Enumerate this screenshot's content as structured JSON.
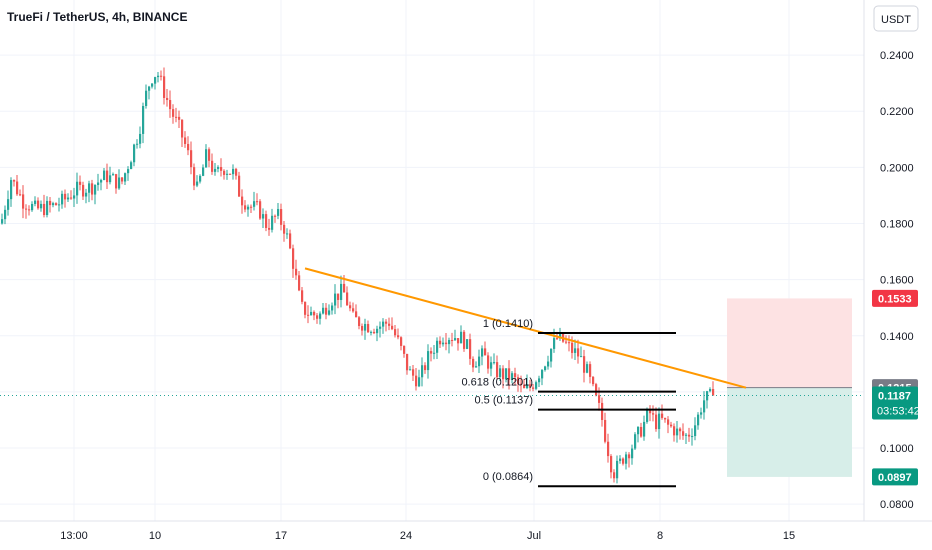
{
  "header": {
    "title": "TrueFi / TetherUS, 4h, BINANCE",
    "currency_button": "USDT"
  },
  "colors": {
    "up": "#26a69a",
    "down": "#ef5350",
    "trendline": "#ff9800",
    "fib_line": "#000000",
    "stop_zone": "#fde2e3",
    "target_zone": "#d7eee9",
    "stop_badge": "#f23645",
    "target_badge": "#089981",
    "last_badge": "#089981",
    "entry_badge": "#787b86"
  },
  "chart_data": {
    "type": "candlestick",
    "title": "TrueFi / TetherUS, 4h, BINANCE",
    "x_ticks": [
      "13:00",
      "10",
      "17",
      "24",
      "Jul",
      "8",
      "15"
    ],
    "y_ticks": [
      "0.2400",
      "0.2200",
      "0.2000",
      "0.1800",
      "0.1600",
      "0.1400",
      "0.1200",
      "0.1000",
      "0.0800"
    ],
    "ylim": [
      0.074,
      0.2525
    ],
    "price_path": [
      [
        0,
        0.18
      ],
      [
        10,
        0.196
      ],
      [
        22,
        0.188
      ],
      [
        35,
        0.185
      ],
      [
        50,
        0.186
      ],
      [
        62,
        0.188
      ],
      [
        75,
        0.192
      ],
      [
        90,
        0.193
      ],
      [
        105,
        0.197
      ],
      [
        120,
        0.194
      ],
      [
        130,
        0.204
      ],
      [
        138,
        0.213
      ],
      [
        145,
        0.226
      ],
      [
        150,
        0.232
      ],
      [
        156,
        0.234
      ],
      [
        162,
        0.228
      ],
      [
        170,
        0.22
      ],
      [
        178,
        0.214
      ],
      [
        186,
        0.206
      ],
      [
        196,
        0.192
      ],
      [
        206,
        0.205
      ],
      [
        214,
        0.197
      ],
      [
        222,
        0.2
      ],
      [
        232,
        0.198
      ],
      [
        240,
        0.189
      ],
      [
        250,
        0.186
      ],
      [
        258,
        0.185
      ],
      [
        266,
        0.179
      ],
      [
        276,
        0.183
      ],
      [
        284,
        0.178
      ],
      [
        292,
        0.166
      ],
      [
        300,
        0.15
      ],
      [
        308,
        0.148
      ],
      [
        318,
        0.147
      ],
      [
        330,
        0.153
      ],
      [
        342,
        0.156
      ],
      [
        352,
        0.146
      ],
      [
        364,
        0.144
      ],
      [
        376,
        0.143
      ],
      [
        388,
        0.145
      ],
      [
        398,
        0.137
      ],
      [
        408,
        0.127
      ],
      [
        418,
        0.124
      ],
      [
        428,
        0.133
      ],
      [
        440,
        0.14
      ],
      [
        452,
        0.14
      ],
      [
        462,
        0.139
      ],
      [
        472,
        0.131
      ],
      [
        482,
        0.133
      ],
      [
        492,
        0.128
      ],
      [
        502,
        0.126
      ],
      [
        512,
        0.125
      ],
      [
        522,
        0.12
      ],
      [
        530,
        0.122
      ],
      [
        540,
        0.128
      ],
      [
        548,
        0.134
      ],
      [
        556,
        0.139
      ],
      [
        562,
        0.138
      ],
      [
        570,
        0.135
      ],
      [
        578,
        0.133
      ],
      [
        586,
        0.127
      ],
      [
        594,
        0.118
      ],
      [
        600,
        0.112
      ],
      [
        606,
        0.101
      ],
      [
        612,
        0.091
      ],
      [
        618,
        0.094
      ],
      [
        624,
        0.098
      ],
      [
        630,
        0.1
      ],
      [
        636,
        0.104
      ],
      [
        642,
        0.108
      ],
      [
        648,
        0.113
      ],
      [
        654,
        0.109
      ],
      [
        660,
        0.11
      ],
      [
        666,
        0.108
      ],
      [
        672,
        0.107
      ],
      [
        678,
        0.105
      ],
      [
        684,
        0.104
      ],
      [
        690,
        0.106
      ],
      [
        696,
        0.11
      ],
      [
        702,
        0.117
      ],
      [
        708,
        0.118
      ],
      [
        712,
        0.1187
      ]
    ],
    "trendline": {
      "from": [
        305,
        0.164
      ],
      "to": [
        746,
        0.1215
      ]
    },
    "fib_levels": [
      {
        "label": "1 (0.1410)",
        "value": 0.141
      },
      {
        "label": "0.618 (0.1201)",
        "value": 0.1201
      },
      {
        "label": "0.5 (0.1137)",
        "value": 0.1137
      },
      {
        "label": "0 (0.0864)",
        "value": 0.0864
      }
    ],
    "position": {
      "stop": 0.1533,
      "entry": 0.1215,
      "target": 0.0897
    },
    "price_badges": {
      "stop": "0.1533",
      "entry": "0.1215",
      "last": "0.1187",
      "countdown": "03:53:42",
      "target": "0.0897"
    },
    "last_price": 0.1187
  }
}
